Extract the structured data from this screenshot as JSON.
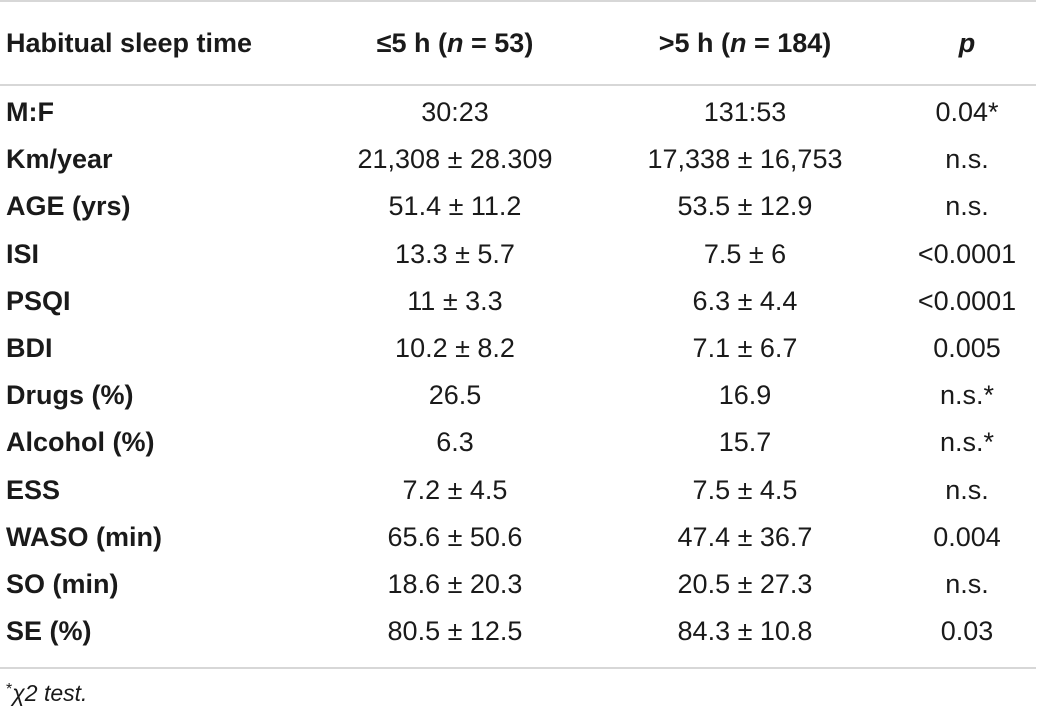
{
  "table": {
    "header": {
      "col0": "Habitual sleep time",
      "col1_prefix": "≤5 h (",
      "col1_n": "n",
      "col1_suffix": " = 53)",
      "col2_prefix": ">5 h (",
      "col2_n": "n",
      "col2_suffix": " = 184)",
      "col3": "p"
    },
    "rows": [
      {
        "label": "M:F",
        "short": "30:23",
        "long": "131:53",
        "p": "0.04*"
      },
      {
        "label": "Km/year",
        "short": "21,308 ± 28.309",
        "long": "17,338 ± 16,753",
        "p": "n.s."
      },
      {
        "label": "AGE (yrs)",
        "short": "51.4 ± 11.2",
        "long": "53.5 ± 12.9",
        "p": "n.s."
      },
      {
        "label": "ISI",
        "short": "13.3 ± 5.7",
        "long": "7.5 ± 6",
        "p": "<0.0001"
      },
      {
        "label": "PSQI",
        "short": "11 ± 3.3",
        "long": "6.3 ± 4.4",
        "p": "<0.0001"
      },
      {
        "label": "BDI",
        "short": "10.2 ± 8.2",
        "long": "7.1 ± 6.7",
        "p": "0.005"
      },
      {
        "label": "Drugs (%)",
        "short": "26.5",
        "long": "16.9",
        "p": "n.s.*"
      },
      {
        "label": "Alcohol (%)",
        "short": "6.3",
        "long": "15.7",
        "p": "n.s.*"
      },
      {
        "label": "ESS",
        "short": "7.2 ± 4.5",
        "long": "7.5 ± 4.5",
        "p": "n.s."
      },
      {
        "label": "WASO (min)",
        "short": "65.6 ± 50.6",
        "long": "47.4 ± 36.7",
        "p": "0.004"
      },
      {
        "label": "SO (min)",
        "short": "18.6 ± 20.3",
        "long": "20.5 ± 27.3",
        "p": "n.s."
      },
      {
        "label": "SE (%)",
        "short": "80.5 ± 12.5",
        "long": "84.3 ± 10.8",
        "p": "0.03"
      }
    ]
  },
  "footnote": {
    "marker": "*",
    "text": "χ2 test."
  }
}
